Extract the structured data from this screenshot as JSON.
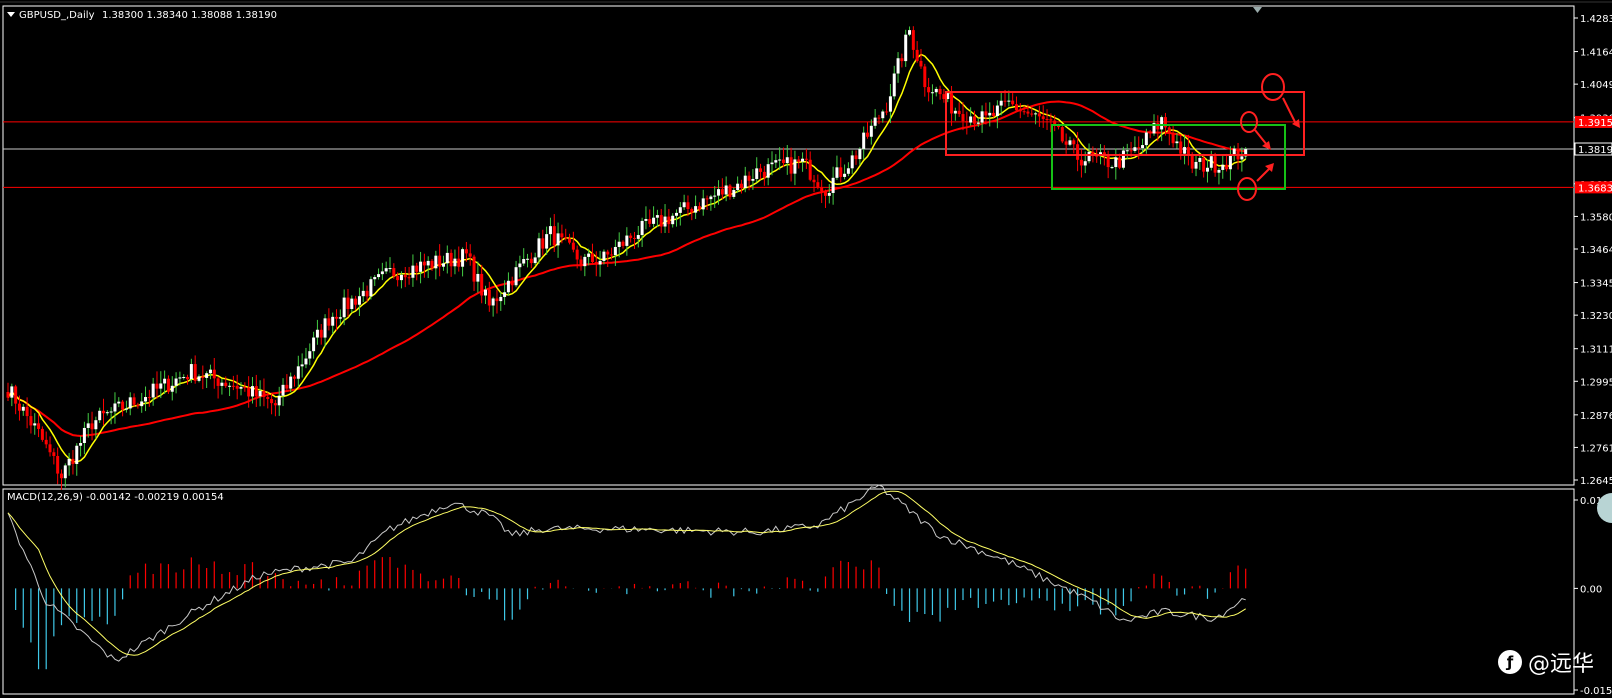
{
  "header": {
    "symbol": "GBPUSD_,Daily",
    "ohlc": "1.38300 1.38340 1.38088 1.38190"
  },
  "macd_label": "MACD(12,26,9) -0.00142 -0.00219 0.00154",
  "price_axis": [
    "1.42835",
    "1.41645",
    "1.40490",
    "1.39300",
    "1.38190",
    "1.36957",
    "1.35800",
    "1.34645",
    "1.33455",
    "1.32300",
    "1.31110",
    "1.29955",
    "1.28765",
    "1.27610",
    "1.26455"
  ],
  "macd_axis": [
    "0.01336",
    "0.00",
    "-0.01536"
  ],
  "watermark": "@远华",
  "colors": {
    "bull": "#ffffff",
    "bear": "#ff0000",
    "ma_fast": "#ffff00",
    "ma_slow": "#ff0000",
    "hist_pos": "#ff0000",
    "hist_neg": "#3fc9e8",
    "frame": "#ffffff",
    "rect_green": "#16c016"
  },
  "chart_data": {
    "type": "candlestick",
    "symbol": "GBPUSD_",
    "timeframe": "Daily",
    "ylim": [
      1.26455,
      1.42835
    ],
    "last_price": 1.3819,
    "horizontal_lines": [
      {
        "price": 1.3915,
        "color": "#ff0000"
      },
      {
        "price": 1.3819,
        "color": "#c8c8c8"
      },
      {
        "price": 1.3683,
        "color": "#ff0000"
      }
    ],
    "anchor_path": [
      [
        0,
        1.297
      ],
      [
        8,
        1.281
      ],
      [
        14,
        1.266
      ],
      [
        22,
        1.285
      ],
      [
        34,
        1.293
      ],
      [
        48,
        1.303
      ],
      [
        60,
        1.298
      ],
      [
        70,
        1.291
      ],
      [
        84,
        1.322
      ],
      [
        100,
        1.338
      ],
      [
        120,
        1.344
      ],
      [
        126,
        1.326
      ],
      [
        134,
        1.34
      ],
      [
        142,
        1.352
      ],
      [
        150,
        1.342
      ],
      [
        156,
        1.343
      ],
      [
        164,
        1.352
      ],
      [
        180,
        1.362
      ],
      [
        192,
        1.37
      ],
      [
        196,
        1.374
      ],
      [
        208,
        1.377
      ],
      [
        214,
        1.368
      ],
      [
        222,
        1.38
      ],
      [
        230,
        1.398
      ],
      [
        236,
        1.424
      ],
      [
        240,
        1.406
      ],
      [
        248,
        1.396
      ],
      [
        256,
        1.392
      ],
      [
        262,
        1.398
      ],
      [
        272,
        1.391
      ],
      [
        280,
        1.379
      ],
      [
        290,
        1.377
      ],
      [
        296,
        1.382
      ],
      [
        302,
        1.392
      ],
      [
        310,
        1.376
      ],
      [
        318,
        1.377
      ],
      [
        324,
        1.382
      ]
    ],
    "macd": {
      "ylim": [
        -0.01536,
        0.01336
      ],
      "anchor_path": [
        [
          0,
          0.011
        ],
        [
          10,
          -0.002
        ],
        [
          28,
          -0.011
        ],
        [
          50,
          -0.003
        ],
        [
          66,
          0.002
        ],
        [
          76,
          0.003
        ],
        [
          90,
          0.004
        ],
        [
          100,
          0.009
        ],
        [
          116,
          0.013
        ],
        [
          126,
          0.011
        ],
        [
          132,
          0.008
        ],
        [
          140,
          0.009
        ],
        [
          160,
          0.009
        ],
        [
          196,
          0.0085
        ],
        [
          212,
          0.0095
        ],
        [
          228,
          0.0155
        ],
        [
          244,
          0.008
        ],
        [
          262,
          0.004
        ],
        [
          284,
          -0.002
        ],
        [
          292,
          -0.005
        ],
        [
          302,
          -0.0035
        ],
        [
          316,
          -0.0045
        ],
        [
          324,
          -0.0014
        ]
      ]
    }
  }
}
